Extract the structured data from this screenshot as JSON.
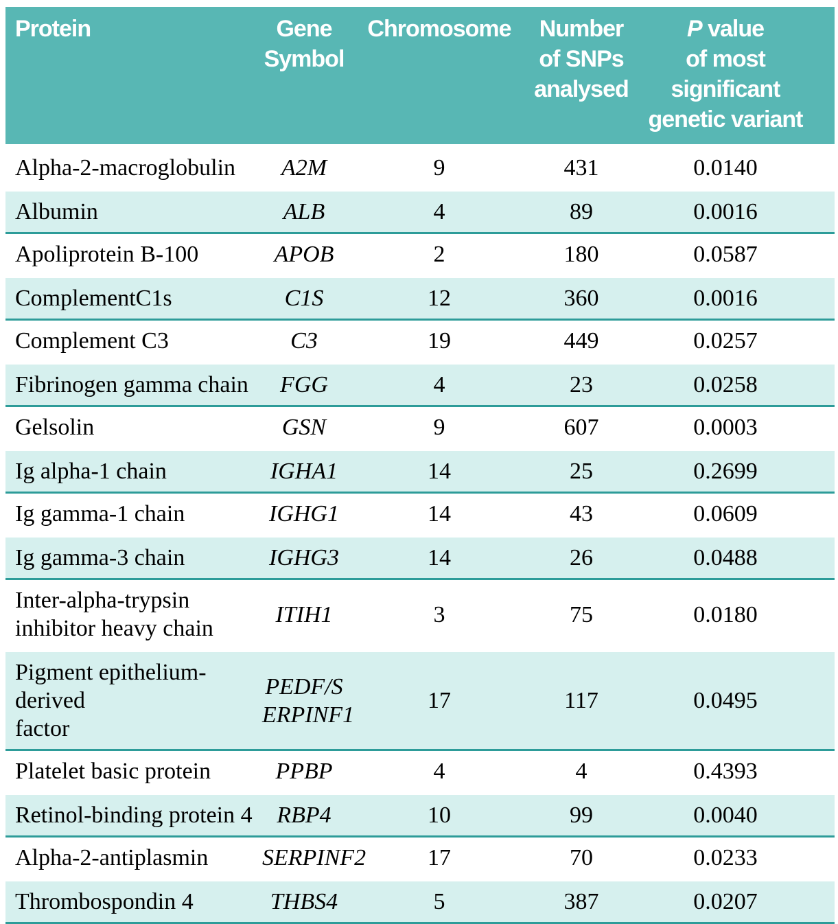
{
  "chart_data": {
    "type": "table",
    "title": "",
    "legend": "none",
    "grid": "alternating row shading",
    "headers": {
      "protein": "Protein",
      "gene": "Gene\nSymbol",
      "chromosome": "Chromosome",
      "snps": "Number\nof SNPs\nanalysed",
      "pvalue_italic": "P",
      "pvalue_rest": " value\nof most\nsignificant\ngenetic variant"
    },
    "rows": [
      {
        "protein": "Alpha-2-macroglobulin",
        "gene": "A2M",
        "chromosome": "9",
        "snps": "431",
        "pvalue": "0.0140"
      },
      {
        "protein": "Albumin",
        "gene": "ALB",
        "chromosome": "4",
        "snps": "89",
        "pvalue": "0.0016"
      },
      {
        "protein": "Apoliprotein B-100",
        "gene": "APOB",
        "chromosome": "2",
        "snps": "180",
        "pvalue": "0.0587"
      },
      {
        "protein": "ComplementC1s",
        "gene": "C1S",
        "chromosome": "12",
        "snps": "360",
        "pvalue": "0.0016"
      },
      {
        "protein": "Complement C3",
        "gene": "C3",
        "chromosome": "19",
        "snps": "449",
        "pvalue": "0.0257"
      },
      {
        "protein": "Fibrinogen gamma chain",
        "gene": "FGG",
        "chromosome": "4",
        "snps": "23",
        "pvalue": "0.0258"
      },
      {
        "protein": "Gelsolin",
        "gene": "GSN",
        "chromosome": "9",
        "snps": "607",
        "pvalue": "0.0003"
      },
      {
        "protein": "Ig alpha-1 chain",
        "gene": "IGHA1",
        "chromosome": "14",
        "snps": "25",
        "pvalue": "0.2699"
      },
      {
        "protein": "Ig gamma-1 chain",
        "gene": "IGHG1",
        "chromosome": "14",
        "snps": "43",
        "pvalue": "0.0609"
      },
      {
        "protein": "Ig gamma-3 chain",
        "gene": "IGHG3",
        "chromosome": "14",
        "snps": "26",
        "pvalue": "0.0488"
      },
      {
        "protein": "Inter-alpha-trypsin\ninhibitor heavy chain",
        "gene": "ITIH1",
        "chromosome": "3",
        "snps": "75",
        "pvalue": "0.0180"
      },
      {
        "protein": "Pigment epithelium-derived\nfactor",
        "gene": "PEDF/S\nERPINF1",
        "chromosome": "17",
        "snps": "117",
        "pvalue": "0.0495"
      },
      {
        "protein": "Platelet basic protein",
        "gene": "PPBP",
        "chromosome": "4",
        "snps": "4",
        "pvalue": "0.4393"
      },
      {
        "protein": "Retinol-binding protein 4",
        "gene": "RBP4",
        "chromosome": "10",
        "snps": "99",
        "pvalue": "0.0040"
      },
      {
        "protein": "Alpha-2-antiplasmin",
        "gene": "SERPINF2",
        "chromosome": "17",
        "snps": "70",
        "pvalue": "0.0233"
      },
      {
        "protein": "Thrombospondin 4",
        "gene": "THBS4",
        "chromosome": "5",
        "snps": "387",
        "pvalue": "0.0207"
      }
    ],
    "colors": {
      "header_bg": "#58b7b4",
      "header_text": "#ffffff",
      "row_shaded_bg": "#d6f0ee",
      "row_divider": "#2d9c99",
      "body_text": "#000000",
      "page_bg": "#ffffff"
    },
    "layout": {
      "striping": "rows 2,4,6,8,10,12,14,16 shaded with teal bottom rule",
      "alignment": "protein column left-aligned; all other columns centered",
      "gene_style": "italic"
    }
  }
}
